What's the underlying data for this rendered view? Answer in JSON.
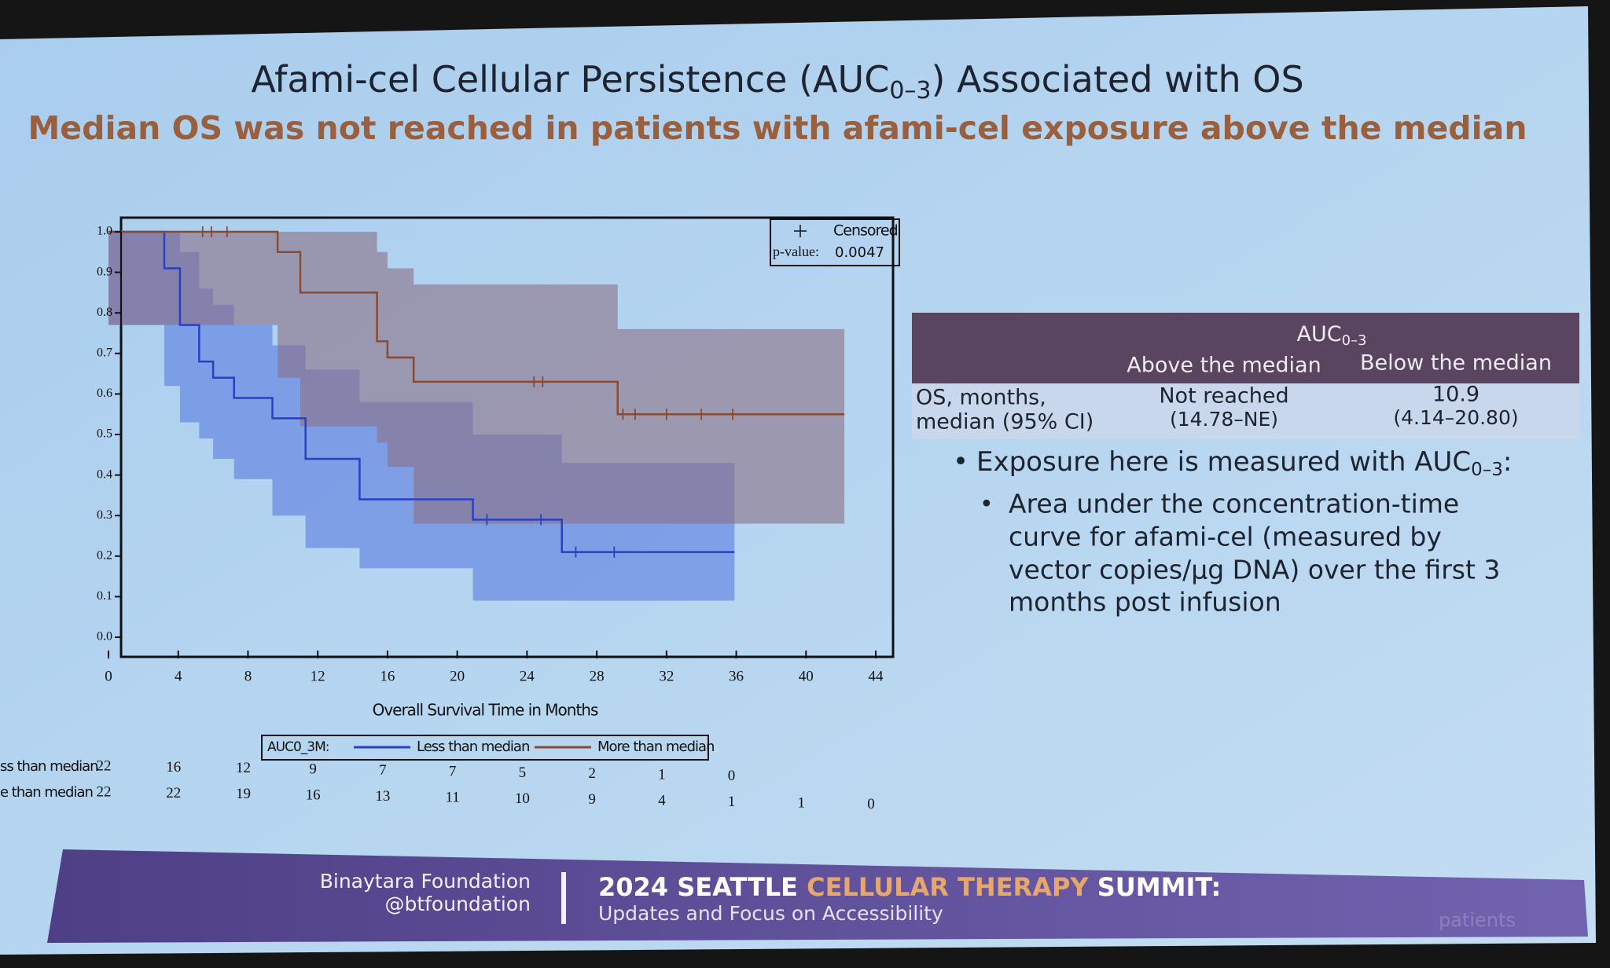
{
  "slide": {
    "title": {
      "main": "Afami-cel Cellular Persistence (AUC",
      "sub": "0–3",
      "end": ") Associated with OS"
    },
    "subtitle": "Median OS was not reached in patients with afami-cel exposure above the median",
    "table": {
      "group": "AUC",
      "group_sub": "0–3",
      "columns": [
        "Above the median",
        "Below the median"
      ],
      "row_label": [
        "OS, months,",
        "median (95% CI)"
      ],
      "cells": [
        [
          "Not reached",
          "(14.78–NE)"
        ],
        [
          "10.9",
          "(4.14–20.80)"
        ]
      ]
    },
    "bullet": {
      "main": "Exposure here is measured with AUC",
      "sub": "0–3",
      "end": ":"
    },
    "sub_bullet": [
      "Area under the concentration-time",
      "curve for afami-cel (measured by",
      "vector copies/µg DNA) over the first 3",
      "months post infusion"
    ],
    "footer": {
      "org": "Binaytara Foundation",
      "handle": "@btfoundation",
      "event_a": "2024 SEATTLE ",
      "event_b": "CELLULAR THERAPY ",
      "event_c": "SUMMIT:",
      "tagline": "Updates and Focus on Accessibility",
      "corner": "patients"
    }
  },
  "chart_data": {
    "type": "km",
    "xlabel": "Overall Survival Time in Months",
    "xlim": [
      0,
      44
    ],
    "xticks": [
      0,
      4,
      8,
      12,
      16,
      20,
      24,
      28,
      32,
      36,
      40,
      44
    ],
    "ylim": [
      0,
      1
    ],
    "yticks": [
      {
        "value": 0,
        "label": "0.0"
      },
      0.1,
      0.2,
      0.3,
      0.4,
      0.5,
      0.6,
      0.7,
      0.8,
      0.9,
      {
        "value": 1,
        "label": "1.0"
      }
    ],
    "censored_label": "Censored",
    "pvalue_label": "p-value:",
    "pvalue": "0.0047",
    "legend_title": "AUC0_3M:",
    "series": [
      {
        "name": "Less than median",
        "color": "#2b3fc4",
        "band_color": "#5a7be0",
        "x": [
          0,
          3.2,
          4.1,
          5.2,
          6.0,
          7.2,
          9.4,
          11.3,
          14.4,
          20.9,
          26.0,
          35.9
        ],
        "values": [
          1,
          0.91,
          0.77,
          0.68,
          0.64,
          0.59,
          0.54,
          0.44,
          0.34,
          0.29,
          0.21,
          0.21
        ],
        "upper": [
          1,
          1,
          0.95,
          0.86,
          0.82,
          0.77,
          0.72,
          0.66,
          0.58,
          0.5,
          0.43,
          0.43
        ],
        "lower": [
          1,
          0.77,
          0.62,
          0.53,
          0.49,
          0.44,
          0.39,
          0.3,
          0.22,
          0.17,
          0.09,
          0.09
        ],
        "censored": [
          21.7,
          24.8,
          26.8,
          29.0
        ],
        "risk_label": "ss than median",
        "at_risk": [
          22,
          16,
          12,
          9,
          7,
          7,
          5,
          2,
          1,
          0
        ]
      },
      {
        "name": "More than median",
        "color": "#8a4a32",
        "band_color": "#8a6f86",
        "x": [
          0,
          9.7,
          11.0,
          15.4,
          16.0,
          17.5,
          29.2,
          42.2
        ],
        "values": [
          1,
          0.95,
          0.85,
          0.73,
          0.69,
          0.63,
          0.55,
          0.55
        ],
        "upper": [
          1,
          1,
          1,
          0.95,
          0.91,
          0.87,
          0.76,
          0.76
        ],
        "lower": [
          1,
          0.77,
          0.64,
          0.52,
          0.48,
          0.42,
          0.28,
          0.28
        ],
        "censored": [
          5.4,
          5.9,
          6.8,
          24.4,
          24.9,
          29.5,
          30.2,
          32.0,
          34.0,
          35.8
        ],
        "risk_label": "e than median",
        "at_risk": [
          22,
          22,
          19,
          16,
          13,
          11,
          10,
          9,
          4,
          1,
          1,
          0
        ]
      }
    ]
  }
}
